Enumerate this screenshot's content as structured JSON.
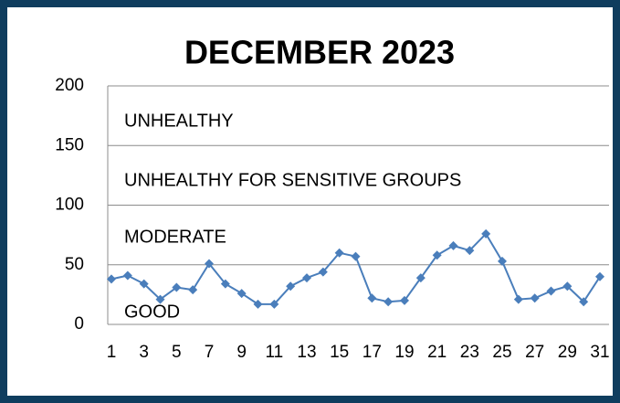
{
  "chart_data": {
    "type": "line",
    "title": "DECEMBER 2023",
    "categories": [
      "1",
      null,
      "3",
      null,
      "5",
      null,
      "7",
      null,
      "9",
      null,
      "11",
      null,
      "13",
      null,
      "15",
      null,
      "17",
      null,
      "19",
      null,
      "21",
      null,
      "23",
      null,
      "25",
      null,
      "27",
      null,
      "29",
      null,
      "31"
    ],
    "values": [
      38,
      41,
      34,
      21,
      31,
      29,
      51,
      34,
      26,
      17,
      17,
      32,
      39,
      44,
      60,
      57,
      22,
      19,
      20,
      39,
      58,
      66,
      62,
      76,
      53,
      21,
      22,
      28,
      32,
      19,
      40
    ],
    "color": "#4a7ebb",
    "ylim": [
      0,
      200
    ],
    "yticks": [
      0,
      50,
      100,
      150,
      200
    ],
    "grid": true,
    "annotations": [
      "UNHEALTHY",
      "UNHEALTHY FOR SENSITIVE GROUPS",
      "MODERATE",
      "GOOD"
    ]
  }
}
